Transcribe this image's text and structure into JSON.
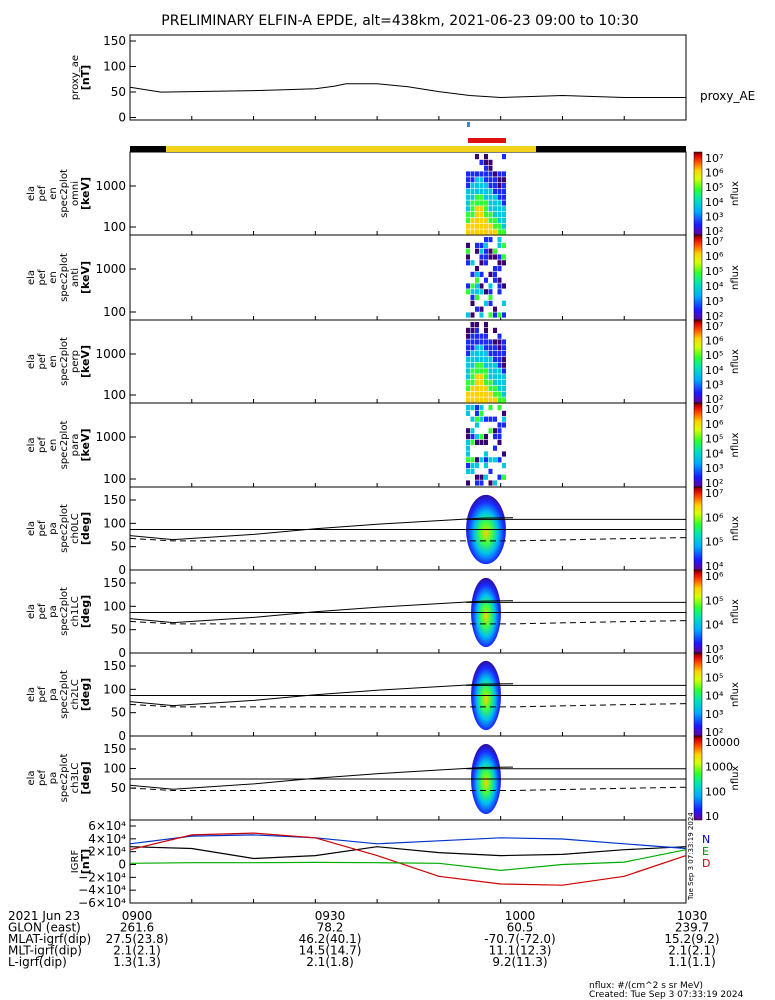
{
  "title": "PRELIMINARY ELFIN-A EPDE, alt=438km, 2021-06-23 09:00 to 10:30",
  "colors": {
    "frame": "#000000",
    "gold": "#f2d21a",
    "red_bar": "#e01010",
    "blue_mark": "#2a8be0",
    "black_bar": "#000000"
  },
  "colorbar_gradient": [
    "#3a0070",
    "#1a1aff",
    "#00b0ff",
    "#00e0a0",
    "#40ff40",
    "#d0ff00",
    "#ffd000",
    "#ff6000",
    "#e00000",
    "#6a0000"
  ],
  "panels": [
    {
      "id": "proxy_ae",
      "ylabel": [
        "proxy_ae",
        "[nT]"
      ],
      "right_label": "proxy_AE",
      "yticks": [
        "150",
        "100",
        "50",
        "0"
      ]
    },
    {
      "id": "omni",
      "ylabel": [
        "ela",
        "pef",
        "en",
        "spec2plot",
        "omni",
        "[keV]"
      ],
      "yticks": [
        "1000",
        "100"
      ],
      "cbar_ticks": [
        "10⁷",
        "10⁶",
        "10⁵",
        "10⁴",
        "10³",
        "10²"
      ],
      "cbar_label": "nflux"
    },
    {
      "id": "anti",
      "ylabel": [
        "ela",
        "pef",
        "en",
        "spec2plot",
        "anti",
        "[keV]"
      ],
      "yticks": [
        "1000",
        "100"
      ],
      "cbar_ticks": [
        "10⁷",
        "10⁶",
        "10⁵",
        "10⁴",
        "10³",
        "10²"
      ],
      "cbar_label": "nflux"
    },
    {
      "id": "perp",
      "ylabel": [
        "ela",
        "pef",
        "en",
        "spec2plot",
        "perp",
        "[keV]"
      ],
      "yticks": [
        "1000",
        "100"
      ],
      "cbar_ticks": [
        "10⁷",
        "10⁶",
        "10⁵",
        "10⁴",
        "10³",
        "10²"
      ],
      "cbar_label": "nflux"
    },
    {
      "id": "para",
      "ylabel": [
        "ela",
        "pef",
        "en",
        "spec2plot",
        "para",
        "[keV]"
      ],
      "yticks": [
        "1000",
        "100"
      ],
      "cbar_ticks": [
        "10⁷",
        "10⁶",
        "10⁵",
        "10⁴",
        "10³",
        "10²"
      ],
      "cbar_label": "nflux"
    },
    {
      "id": "ch0LC",
      "ylabel": [
        "ela",
        "pef",
        "pa",
        "spec2plot",
        "ch0LC",
        "[deg]"
      ],
      "yticks": [
        "150",
        "100",
        "50",
        "0"
      ],
      "cbar_ticks": [
        "10⁷",
        "10⁶",
        "10⁵",
        "10⁴"
      ],
      "cbar_label": "nflux"
    },
    {
      "id": "ch1LC",
      "ylabel": [
        "ela",
        "pef",
        "pa",
        "spec2plot",
        "ch1LC",
        "[deg]"
      ],
      "yticks": [
        "150",
        "100",
        "50",
        "0"
      ],
      "cbar_ticks": [
        "10⁶",
        "10⁵",
        "10⁴",
        "10³"
      ],
      "cbar_label": "nflux"
    },
    {
      "id": "ch2LC",
      "ylabel": [
        "ela",
        "pef",
        "pa",
        "spec2plot",
        "ch2LC",
        "[deg]"
      ],
      "yticks": [
        "150",
        "100",
        "50",
        "0"
      ],
      "cbar_ticks": [
        "10⁶",
        "10⁵",
        "10⁴",
        "10³",
        "10²"
      ],
      "cbar_label": "nflux"
    },
    {
      "id": "ch3LC",
      "ylabel": [
        "ela",
        "pef",
        "pa",
        "spec2plot",
        "ch3LC",
        "[deg]"
      ],
      "yticks": [
        "150",
        "100",
        "50"
      ],
      "cbar_ticks": [
        "10000",
        "1000",
        "100",
        "10"
      ],
      "cbar_label": "nflux"
    },
    {
      "id": "igrf",
      "ylabel": [
        "IGRF",
        "[nT]"
      ],
      "yticks": [
        "6×10⁴",
        "4×10⁴",
        "2×10⁴",
        "0",
        "−2×10⁴",
        "−4×10⁴",
        "−6×10⁴"
      ],
      "legend": [
        "N",
        "E",
        "D"
      ],
      "legend_colors": [
        "#0000cc",
        "#008800",
        "#cc0000"
      ]
    }
  ],
  "footer": {
    "rows": [
      [
        "2021 Jun 23",
        "0900",
        "0930",
        "1000",
        "1030"
      ],
      [
        "GLON (east)",
        "261.6",
        "78.2",
        "60.5",
        "239.7"
      ],
      [
        "MLAT-igrf(dip)",
        "27.5(23.8)",
        "46.2(40.1)",
        "-70.7(-72.0)",
        "15.2(9.2)"
      ],
      [
        "MLT-igrf(dip)",
        "2.1(2.1)",
        "14.5(14.7)",
        "11.1(12.3)",
        "2.1(2.1)"
      ],
      [
        "L-igrf(dip)",
        "1.3(1.3)",
        "2.1(1.8)",
        "9.2(11.3)",
        "1.1(1.1)"
      ]
    ],
    "units_note": "nflux: #/(cm^2 s sr MeV)",
    "created": "Created: Tue Sep  3 07:33:19 2024",
    "side_stamp": "Tue Sep  3 07:33:19 2024"
  },
  "chart_data": {
    "type": "line",
    "x_range_utc": [
      "09:00",
      "10:30"
    ],
    "proxy_ae": {
      "title": "proxy_AE",
      "ylim": [
        0,
        150
      ],
      "x_minutes": [
        0,
        5,
        10,
        15,
        20,
        25,
        30,
        33,
        35,
        38,
        40,
        45,
        50,
        55,
        60,
        65,
        70,
        75,
        80,
        85,
        90
      ],
      "values": [
        55,
        45,
        46,
        47,
        48,
        50,
        52,
        57,
        62,
        62,
        62,
        56,
        46,
        38,
        34,
        36,
        38,
        36,
        34,
        34,
        34
      ]
    },
    "pitch_angle_lines": {
      "ylim": [
        0,
        180
      ],
      "solid_lower_deg": 90,
      "solid_upper_deg": 115,
      "loss_cone_deg": [
        75,
        65,
        78,
        92,
        103,
        112,
        118,
        119,
        95,
        88
      ]
    },
    "igrf": {
      "ylim": [
        -60000,
        60000
      ],
      "x_minutes": [
        0,
        10,
        20,
        30,
        40,
        50,
        60,
        70,
        80,
        90
      ],
      "series": [
        {
          "name": "N",
          "values": [
            25000,
            22000,
            5000,
            10000,
            25000,
            15000,
            10000,
            12000,
            20000,
            25000
          ]
        },
        {
          "name": "E",
          "values": [
            30000,
            43000,
            45000,
            40000,
            30000,
            35000,
            40000,
            38000,
            30000,
            22000
          ]
        },
        {
          "name": "D",
          "values": [
            20000,
            45000,
            48000,
            40000,
            10000,
            -25000,
            -38000,
            -40000,
            -25000,
            10000
          ]
        },
        {
          "name": "E-green",
          "values": [
            -3000,
            -2000,
            -2000,
            -1500,
            -2000,
            -3000,
            -15000,
            -5000,
            -1000,
            20000
          ]
        }
      ]
    }
  }
}
